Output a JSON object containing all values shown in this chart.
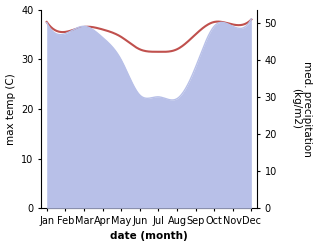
{
  "months": [
    "Jan",
    "Feb",
    "Mar",
    "Apr",
    "May",
    "Jun",
    "Jul",
    "Aug",
    "Sep",
    "Oct",
    "Nov",
    "Dec"
  ],
  "x": [
    0,
    1,
    2,
    3,
    4,
    5,
    6,
    7,
    8,
    9,
    10,
    11
  ],
  "temp": [
    37.5,
    35.5,
    36.5,
    36.0,
    34.5,
    32.0,
    31.5,
    32.0,
    35.0,
    37.5,
    37.0,
    38.0
  ],
  "precip": [
    50.0,
    47.0,
    49.0,
    46.0,
    40.0,
    30.5,
    30.0,
    29.5,
    38.0,
    49.0,
    49.0,
    51.0
  ],
  "temp_color": "#c0504d",
  "precip_fill_color": "#b8c0e8",
  "temp_ylim": [
    0,
    40
  ],
  "precip_ylim": [
    0,
    53.5
  ],
  "xlabel": "date (month)",
  "ylabel_left": "max temp (C)",
  "ylabel_right": "med. precipitation\n(kg/m2)",
  "background_color": "#ffffff",
  "label_fontsize": 7.5,
  "tick_fontsize": 7
}
